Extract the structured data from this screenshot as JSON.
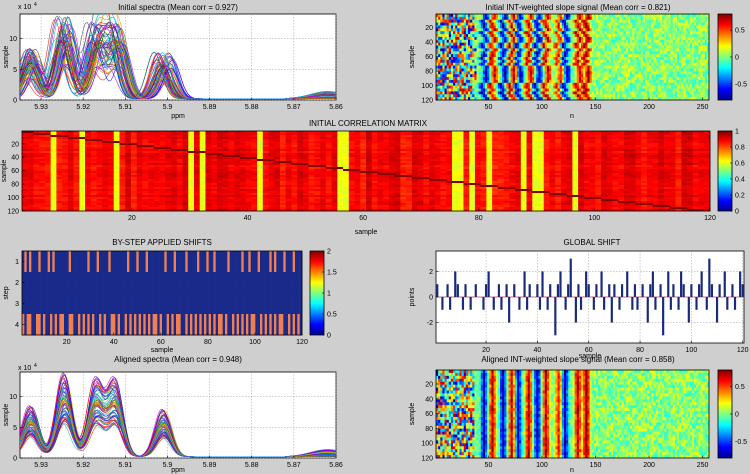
{
  "figure_background": "#cfcfcf",
  "chart_data": [
    {
      "id": "initial_spectra",
      "type": "line",
      "title": "Initial spectra (Mean corr = 0.927)",
      "xlabel": "ppm",
      "ylabel": "sample",
      "y_exponent": "x 10",
      "y_exponent_power": "4",
      "x_ticks": [
        "5.93",
        "5.92",
        "5.91",
        "5.9",
        "5.89",
        "5.88",
        "5.87",
        "5.86"
      ],
      "y_ticks": [
        "0",
        "5",
        "10"
      ],
      "xlim": [
        5.935,
        5.86
      ],
      "ylim": [
        0,
        14
      ],
      "x_reversed": true,
      "grid": true,
      "n_series": 120,
      "peak_positions_ppm": [
        5.9325,
        5.9245,
        5.917,
        5.9125,
        5.901
      ],
      "peak_heights": [
        7,
        11.5,
        10.5,
        10.5,
        6.5
      ]
    },
    {
      "id": "initial_slope",
      "type": "heatmap",
      "title": "Initial INT-weighted slope signal (Mean corr = 0.821)",
      "xlabel": "n",
      "ylabel": "sample",
      "x_ticks": [
        "50",
        "100",
        "150",
        "200",
        "250"
      ],
      "y_ticks": [
        "20",
        "40",
        "60",
        "80",
        "100",
        "120"
      ],
      "xlim": [
        1,
        256
      ],
      "ylim": [
        1,
        120
      ],
      "colorbar_ticks": [
        "0.5",
        "0",
        "-0.5"
      ],
      "clim": [
        -0.8,
        0.8
      ]
    },
    {
      "id": "initial_corr",
      "type": "heatmap",
      "title": "INITIAL CORRELATION MATRIX",
      "xlabel": "sample",
      "ylabel": "sample",
      "x_ticks": [
        "20",
        "40",
        "60",
        "80",
        "100",
        "120"
      ],
      "y_ticks": [
        "20",
        "40",
        "60",
        "80",
        "100",
        "120"
      ],
      "xlim": [
        1,
        120
      ],
      "ylim": [
        1,
        120
      ],
      "colorbar_ticks": [
        "1",
        "0.8",
        "0.6",
        "0.4",
        "0.2",
        "0"
      ],
      "clim": [
        0,
        1
      ]
    },
    {
      "id": "bystep_shifts",
      "type": "heatmap",
      "title": "BY-STEP APPLIED SHIFTS",
      "xlabel": "sample",
      "ylabel": "step",
      "x_ticks": [
        "20",
        "40",
        "60",
        "80",
        "100",
        "120"
      ],
      "y_ticks": [
        "1",
        "2",
        "3",
        "4"
      ],
      "xlim": [
        1,
        120
      ],
      "ylim": [
        1,
        4
      ],
      "colorbar_ticks": [
        "2",
        "1.5",
        "1",
        "0.5",
        "0"
      ],
      "clim": [
        0,
        2
      ],
      "shifted_samples_step1": [
        2,
        4,
        8,
        12,
        14,
        21,
        29,
        33,
        38,
        46,
        50,
        54,
        62,
        66,
        71,
        76,
        80,
        83,
        89,
        95,
        98,
        102,
        107,
        109,
        113,
        117
      ],
      "shifted_samples_step4": [
        1,
        3,
        4,
        7,
        8,
        10,
        13,
        15,
        17,
        18,
        21,
        22,
        25,
        27,
        29,
        31,
        34,
        36,
        39,
        40,
        42,
        45,
        47,
        49,
        51,
        53,
        55,
        57,
        58,
        60,
        63,
        65,
        67,
        68,
        71,
        73,
        75,
        77,
        79,
        81,
        83,
        85,
        86,
        88,
        91,
        93,
        95,
        97,
        99,
        100,
        103,
        105,
        107,
        109,
        111,
        112,
        115,
        117,
        119
      ]
    },
    {
      "id": "global_shift",
      "type": "bar",
      "title": "GLOBAL SHIFT",
      "xlabel": "sample",
      "ylabel": "points",
      "x_ticks": [
        "20",
        "40",
        "60",
        "80",
        "100",
        "120"
      ],
      "y_ticks": [
        "-2",
        "0",
        "2"
      ],
      "xlim": [
        1,
        120
      ],
      "ylim": [
        -3.6,
        3.6
      ],
      "grid": true,
      "values": [
        1,
        0,
        -1,
        0,
        1,
        -1,
        0,
        2,
        1,
        0,
        -1,
        1,
        0,
        -1,
        0,
        1,
        0,
        0,
        -1,
        1,
        2,
        0,
        -1,
        0,
        1,
        -1,
        0,
        1,
        -2,
        0,
        1,
        0,
        -1,
        0,
        2,
        -1,
        1,
        0,
        0,
        1,
        -1,
        2,
        0,
        -1,
        1,
        0,
        -3,
        1,
        2,
        0,
        -1,
        1,
        3,
        0,
        -2,
        1,
        -1,
        0,
        2,
        1,
        0,
        -1,
        1,
        0,
        2,
        -1,
        0,
        1,
        -2,
        1,
        0,
        -1,
        1,
        0,
        2,
        0,
        -1,
        1,
        -1,
        0,
        1,
        0,
        -2,
        1,
        2,
        -1,
        0,
        1,
        -3,
        0,
        2,
        -1,
        1,
        0,
        -1,
        2,
        1,
        0,
        -2,
        1,
        0,
        -1,
        1,
        2,
        0,
        -1,
        3,
        1,
        0,
        -2,
        1,
        0,
        2,
        -1,
        0,
        1,
        -1,
        0,
        2,
        1
      ]
    },
    {
      "id": "aligned_spectra",
      "type": "line",
      "title": "Aligned spectra (Mean corr = 0.948)",
      "xlabel": "ppm",
      "ylabel": "sample",
      "y_exponent": "x 10",
      "y_exponent_power": "4",
      "x_ticks": [
        "5.93",
        "5.92",
        "5.91",
        "5.9",
        "5.89",
        "5.88",
        "5.87",
        "5.86"
      ],
      "y_ticks": [
        "0",
        "5",
        "10"
      ],
      "xlim": [
        5.935,
        5.86
      ],
      "ylim": [
        0,
        14
      ],
      "x_reversed": true,
      "grid": true,
      "n_series": 120,
      "peak_positions_ppm": [
        5.9325,
        5.9245,
        5.917,
        5.9125,
        5.901
      ],
      "peak_heights": [
        7,
        11.5,
        10.5,
        10.5,
        6.5
      ]
    },
    {
      "id": "aligned_slope",
      "type": "heatmap",
      "title": "Aligned INT-weighted slope signal (Mean corr = 0.858)",
      "xlabel": "n",
      "ylabel": "sample",
      "x_ticks": [
        "50",
        "100",
        "150",
        "200",
        "250"
      ],
      "y_ticks": [
        "20",
        "40",
        "60",
        "80",
        "100",
        "120"
      ],
      "xlim": [
        1,
        256
      ],
      "ylim": [
        1,
        120
      ],
      "colorbar_ticks": [
        "0.5",
        "0",
        "-0.5"
      ],
      "clim": [
        -0.8,
        0.8
      ]
    }
  ]
}
